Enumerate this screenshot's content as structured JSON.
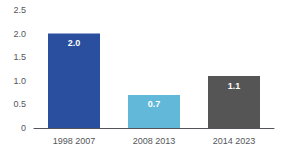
{
  "chart_data": {
    "type": "bar",
    "categories": [
      "1998 2007",
      "2008 2013",
      "2014 2023"
    ],
    "values": [
      2.0,
      0.7,
      1.1
    ],
    "value_labels": [
      "2.0",
      "0.7",
      "1.1"
    ],
    "colors": [
      "#2a4f9e",
      "#62b8d8",
      "#555555"
    ],
    "ylim": [
      0,
      2.5
    ],
    "yticks": [
      0,
      0.5,
      {
        "value": 1.0,
        "label": "1.0"
      },
      1.5,
      {
        "value": 2.0,
        "label": "2.0"
      },
      2.5
    ],
    "grid": false,
    "data_labels": true
  }
}
